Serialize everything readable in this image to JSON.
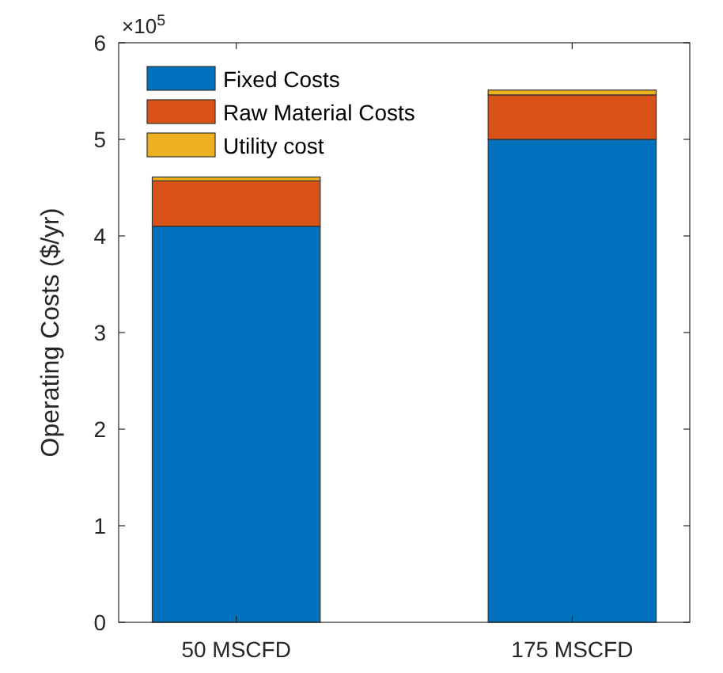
{
  "chart_data": {
    "type": "bar",
    "stacked": true,
    "ylabel": "Operating Costs ($/yr)",
    "categories": [
      "50 MSCFD",
      "175 MSCFD"
    ],
    "series": [
      {
        "name": "Fixed Costs",
        "color": "#0072bd",
        "values": [
          4.1,
          5.0
        ]
      },
      {
        "name": "Raw Material Costs",
        "color": "#d95319",
        "values": [
          0.47,
          0.46
        ]
      },
      {
        "name": "Utility cost",
        "color": "#edb120",
        "values": [
          0.04,
          0.05
        ]
      }
    ],
    "ylim": [
      0,
      6
    ],
    "yticks": [
      0,
      1,
      2,
      3,
      4,
      5,
      6
    ],
    "annotations": [
      "×10$^{5}$"
    ],
    "legend": "top left",
    "grid": false
  }
}
